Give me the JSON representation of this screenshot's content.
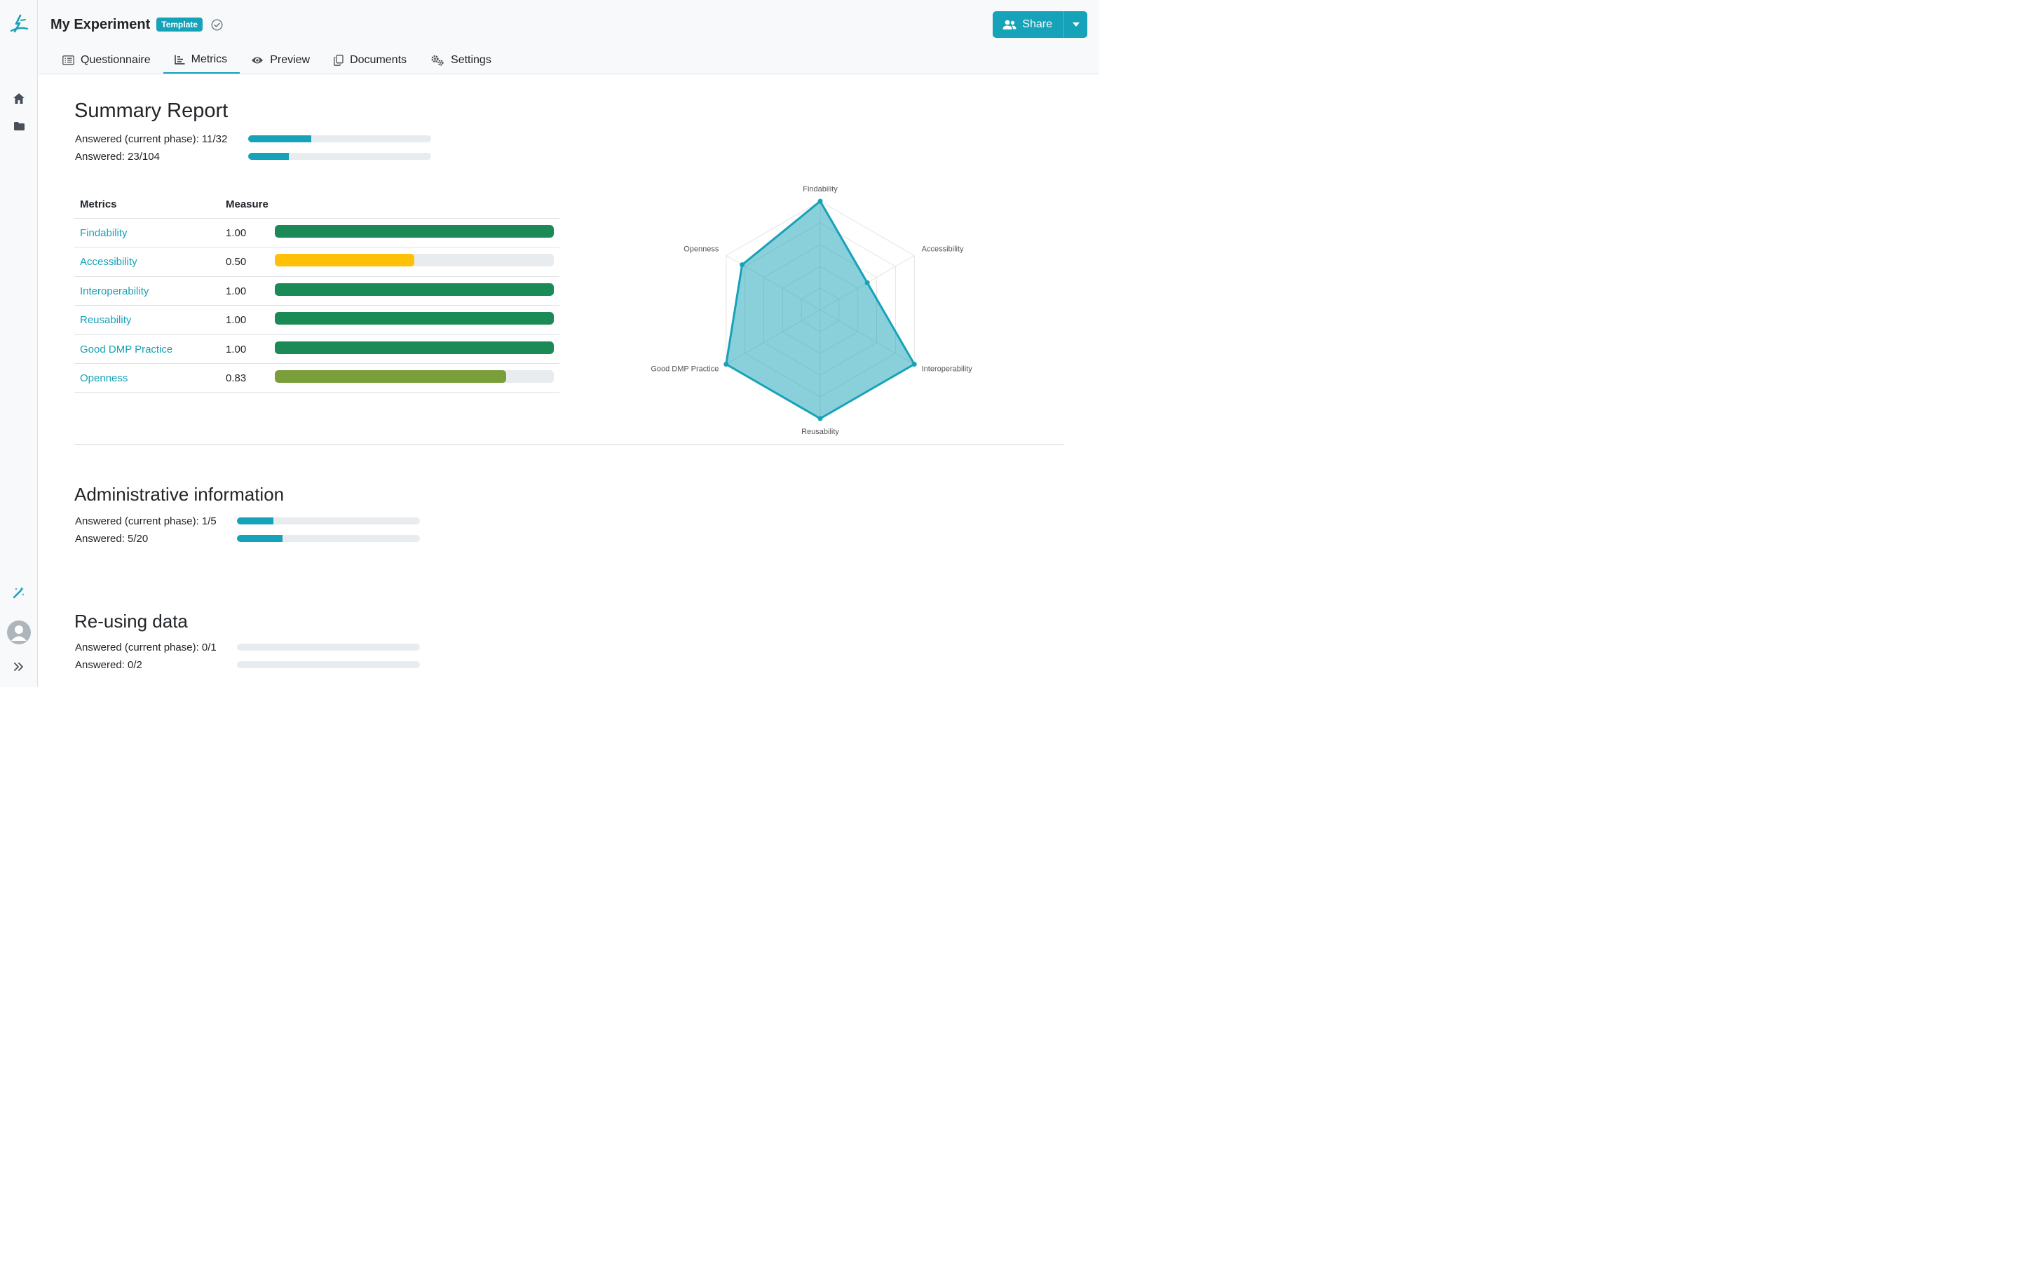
{
  "app": {
    "title": "My Experiment",
    "badge": "Template"
  },
  "sidebar": {
    "items": [
      {
        "icon": "logo-icon"
      },
      {
        "icon": "home-icon"
      },
      {
        "icon": "folder-icon"
      },
      {
        "icon": "magic-wand-icon"
      },
      {
        "icon": "avatar"
      },
      {
        "icon": "expand-icon"
      }
    ]
  },
  "share": {
    "label": "Share"
  },
  "tabs": [
    {
      "label": "Questionnaire",
      "icon": "list-icon",
      "active": false
    },
    {
      "label": "Metrics",
      "icon": "chart-icon",
      "active": true
    },
    {
      "label": "Preview",
      "icon": "eye-icon",
      "active": false
    },
    {
      "label": "Documents",
      "icon": "copy-icon",
      "active": false
    },
    {
      "label": "Settings",
      "icon": "gears-icon",
      "active": false
    }
  ],
  "summary": {
    "title": "Summary Report",
    "answered_phase_label": "Answered (current phase): 11/32",
    "answered_phase_fraction": 0.344,
    "answered_label": "Answered: 23/104",
    "answered_fraction": 0.221
  },
  "metrics_table": {
    "col_metrics": "Metrics",
    "col_measure": "Measure",
    "rows": [
      {
        "name": "Findability",
        "value": "1.00",
        "fraction": 1.0,
        "color": "#1b8a57"
      },
      {
        "name": "Accessibility",
        "value": "0.50",
        "fraction": 0.5,
        "color": "#ffc107"
      },
      {
        "name": "Interoperability",
        "value": "1.00",
        "fraction": 1.0,
        "color": "#1b8a57"
      },
      {
        "name": "Reusability",
        "value": "1.00",
        "fraction": 1.0,
        "color": "#1b8a57"
      },
      {
        "name": "Good DMP Practice",
        "value": "1.00",
        "fraction": 1.0,
        "color": "#1b8a57"
      },
      {
        "name": "Openness",
        "value": "0.83",
        "fraction": 0.83,
        "color": "#7a9e3a"
      }
    ]
  },
  "chart_data": {
    "type": "radar",
    "categories": [
      "Findability",
      "Accessibility",
      "Interoperability",
      "Reusability",
      "Good DMP Practice",
      "Openness"
    ],
    "series": [
      {
        "values": [
          1.0,
          0.5,
          1.0,
          1.0,
          1.0,
          0.83
        ],
        "color": "#16a2b8"
      }
    ],
    "range": [
      0,
      1
    ],
    "grid_levels": 5
  },
  "sections": [
    {
      "title": "Administrative information",
      "answered_phase_label": "Answered (current phase): 1/5",
      "answered_phase_fraction": 0.2,
      "answered_label": "Answered: 5/20",
      "answered_fraction": 0.25
    },
    {
      "title": "Re-using data",
      "answered_phase_label": "Answered (current phase): 0/1",
      "answered_phase_fraction": 0,
      "answered_label": "Answered: 0/2",
      "answered_fraction": 0
    }
  ],
  "colors": {
    "accent": "#16a2b8",
    "success": "#1b8a57",
    "warning": "#ffc107",
    "olive": "#7a9e3a"
  }
}
